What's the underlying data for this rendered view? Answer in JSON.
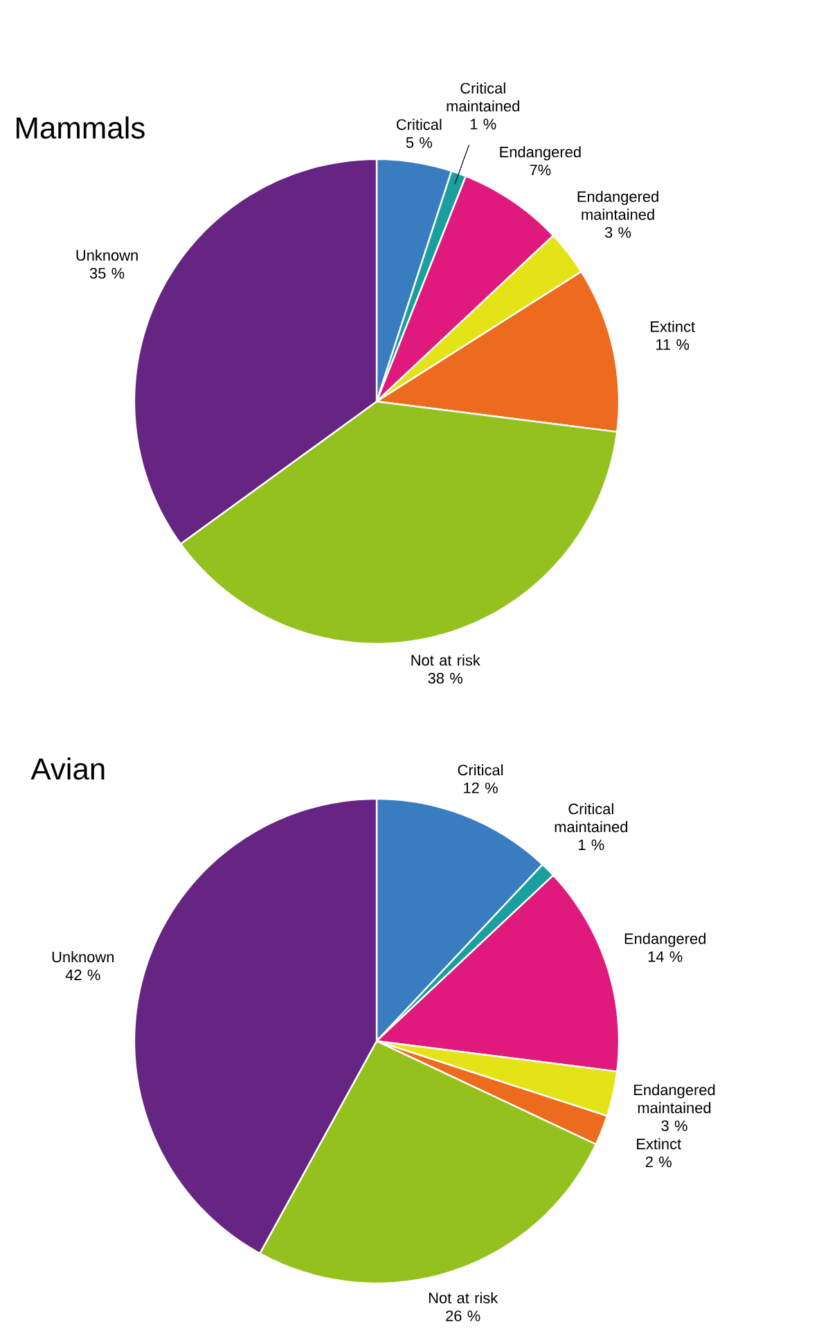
{
  "chart_data": [
    {
      "type": "pie",
      "title": "Mammals",
      "categories": [
        "Critical",
        "Critical maintained",
        "Endangered",
        "Endangered maintained",
        "Extinct",
        "Not at risk",
        "Unknown"
      ],
      "values": [
        5,
        1,
        7,
        3,
        11,
        38,
        35
      ],
      "value_labels": [
        "5 %",
        "1 %",
        "7%",
        "3 %",
        "11 %",
        "38 %",
        "35 %"
      ],
      "colors": [
        "#3a7cc0",
        "#1a9e9e",
        "#e0197d",
        "#e3e317",
        "#ec6b1e",
        "#95c11f",
        "#662483"
      ]
    },
    {
      "type": "pie",
      "title": "Avian",
      "categories": [
        "Critical",
        "Critical maintained",
        "Endangered",
        "Endangered maintained",
        "Extinct",
        "Not at risk",
        "Unknown"
      ],
      "values": [
        12,
        1,
        14,
        3,
        2,
        26,
        42
      ],
      "value_labels": [
        "12 %",
        "1 %",
        "14 %",
        "3 %",
        "2 %",
        "26 %",
        "42 %"
      ],
      "colors": [
        "#3a7cc0",
        "#1a9e9e",
        "#e0197d",
        "#e3e317",
        "#ec6b1e",
        "#95c11f",
        "#662483"
      ]
    }
  ]
}
